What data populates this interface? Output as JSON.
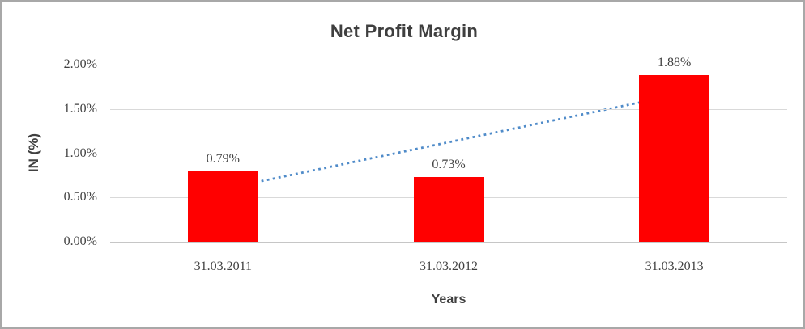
{
  "window": {
    "background": "#ffffff",
    "border_color": "#a8a8a8"
  },
  "chart_data": {
    "type": "bar",
    "title": "Net Profit Margin",
    "xlabel": "Years",
    "ylabel": "IN (%)",
    "categories": [
      "31.03.2011",
      "31.03.2012",
      "31.03.2013"
    ],
    "values": [
      0.79,
      0.73,
      1.88
    ],
    "value_labels": [
      "0.79%",
      "0.73%",
      "1.88%"
    ],
    "ylim": [
      0,
      2.0
    ],
    "ytick_step": 0.5,
    "yticks": [
      {
        "value": 0.0,
        "label": "0.00%"
      },
      {
        "value": 0.5,
        "label": "0.50%"
      },
      {
        "value": 1.0,
        "label": "1.00%"
      },
      {
        "value": 1.5,
        "label": "1.50%"
      },
      {
        "value": 2.0,
        "label": "2.00%"
      }
    ],
    "grid": true,
    "legend": "none",
    "bar_color": "#ff0000",
    "gridline_color": "#d9d9d9",
    "text_color": "#404040",
    "trendline": {
      "type": "linear",
      "style": "dotted",
      "color": "#4f8bc9",
      "start_value": 0.59,
      "end_value": 1.66
    }
  }
}
